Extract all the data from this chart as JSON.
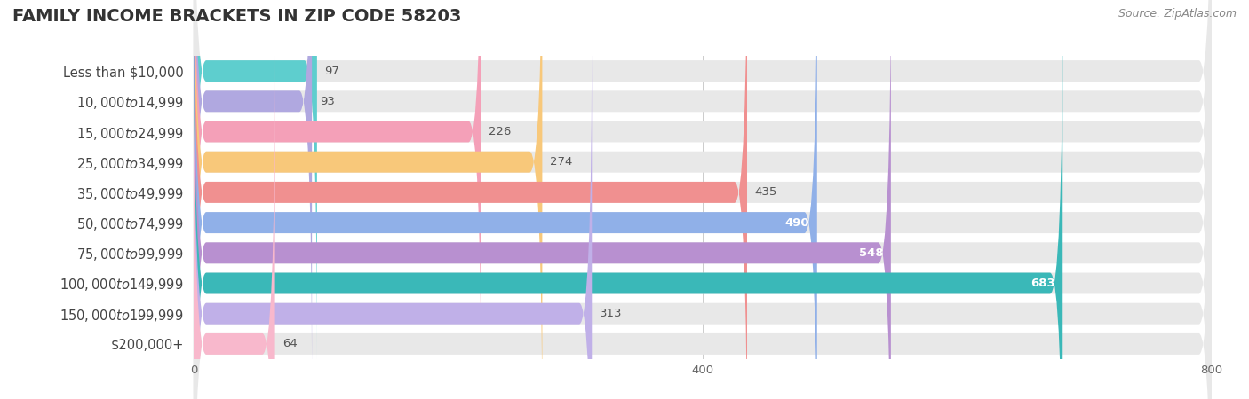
{
  "title": "FAMILY INCOME BRACKETS IN ZIP CODE 58203",
  "source": "Source: ZipAtlas.com",
  "categories": [
    "Less than $10,000",
    "$10,000 to $14,999",
    "$15,000 to $24,999",
    "$25,000 to $34,999",
    "$35,000 to $49,999",
    "$50,000 to $74,999",
    "$75,000 to $99,999",
    "$100,000 to $149,999",
    "$150,000 to $199,999",
    "$200,000+"
  ],
  "values": [
    97,
    93,
    226,
    274,
    435,
    490,
    548,
    683,
    313,
    64
  ],
  "bar_colors": [
    "#5ecece",
    "#b0a8e0",
    "#f4a0b8",
    "#f8c87a",
    "#f09090",
    "#90b0e8",
    "#b890d0",
    "#3ab8b8",
    "#c0b0e8",
    "#f8b8cc"
  ],
  "bg_track_color": "#e8e8e8",
  "xlim": [
    0,
    800
  ],
  "xticks": [
    0,
    400,
    800
  ],
  "title_fontsize": 14,
  "label_fontsize": 10.5,
  "value_fontsize": 9.5,
  "source_fontsize": 9,
  "tick_fontsize": 9.5
}
